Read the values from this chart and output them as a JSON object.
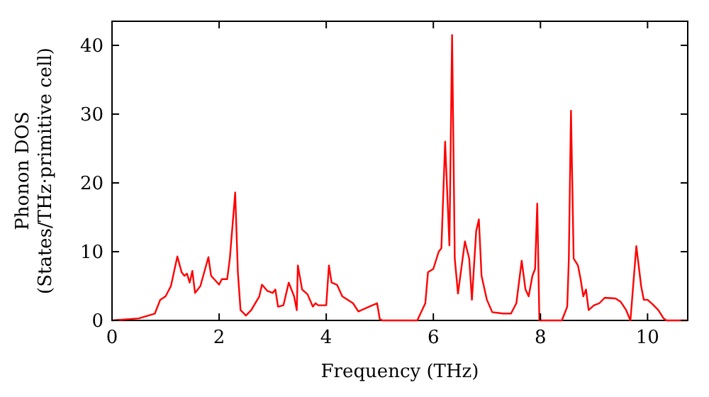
{
  "chart_data": {
    "type": "line",
    "xlabel": "Frequency (THz)",
    "ylabel": "Phonon DOS\n(States/THz·primitive cell)",
    "xlim": [
      0,
      10.75
    ],
    "ylim": [
      0,
      43.5
    ],
    "xticks": [
      0,
      2,
      4,
      6,
      8,
      10
    ],
    "yticks": [
      0,
      10,
      20,
      30,
      40
    ],
    "grid": false,
    "line_style": "solid",
    "series": [
      {
        "color": "#ff0000",
        "x": [
          0,
          0.5,
          0.8,
          0.9,
          1.0,
          1.1,
          1.22,
          1.3,
          1.35,
          1.4,
          1.45,
          1.5,
          1.55,
          1.65,
          1.8,
          1.85,
          2.0,
          2.05,
          2.15,
          2.2,
          2.3,
          2.35,
          2.4,
          2.5,
          2.6,
          2.75,
          2.8,
          2.9,
          3.0,
          3.05,
          3.1,
          3.2,
          3.3,
          3.4,
          3.45,
          3.47,
          3.55,
          3.65,
          3.75,
          3.8,
          3.85,
          4.0,
          4.05,
          4.1,
          4.2,
          4.3,
          4.5,
          4.6,
          4.8,
          4.95,
          5.0,
          5.05,
          5.4,
          5.7,
          5.85,
          5.9,
          6.0,
          6.1,
          6.15,
          6.22,
          6.3,
          6.35,
          6.4,
          6.46,
          6.59,
          6.67,
          6.72,
          6.8,
          6.85,
          6.9,
          7.0,
          7.1,
          7.3,
          7.45,
          7.55,
          7.65,
          7.72,
          7.78,
          7.85,
          7.9,
          7.94,
          7.98,
          8.4,
          8.5,
          8.53,
          8.57,
          8.62,
          8.7,
          8.75,
          8.8,
          8.85,
          8.9,
          9.0,
          9.1,
          9.2,
          9.4,
          9.5,
          9.6,
          9.68,
          9.79,
          9.88,
          9.93,
          10.0,
          10.1,
          10.2,
          10.3,
          10.35,
          10.75
        ],
        "values": [
          0,
          0.3,
          1,
          3,
          3.5,
          5,
          9.3,
          7,
          6.5,
          6.8,
          5.5,
          7.2,
          4,
          5,
          9.2,
          6.5,
          5.2,
          6,
          6,
          9,
          18.6,
          7,
          1.5,
          0.7,
          1.5,
          3.5,
          5.2,
          4.3,
          4,
          4.5,
          2,
          2.2,
          5.5,
          3.5,
          1.5,
          8,
          4.5,
          3.8,
          2,
          2.5,
          2.2,
          2.2,
          8,
          5.5,
          5.2,
          3.5,
          2.5,
          1.3,
          2,
          2.5,
          0.2,
          0,
          0,
          0,
          2.5,
          7,
          7.5,
          10,
          10.5,
          26,
          10.9,
          41.5,
          9,
          3.9,
          11.5,
          9,
          3,
          13,
          14.7,
          6.5,
          3,
          1.2,
          1,
          1,
          2.5,
          8.7,
          4.5,
          3.5,
          6.5,
          7.5,
          17,
          0,
          0,
          2,
          9,
          30.5,
          9,
          8,
          6,
          3.5,
          4.5,
          1.5,
          2.2,
          2.5,
          3.3,
          3.2,
          2.7,
          1.5,
          0,
          10.8,
          5,
          3,
          3,
          2.3,
          1.5,
          0.3,
          0,
          0
        ]
      }
    ]
  }
}
